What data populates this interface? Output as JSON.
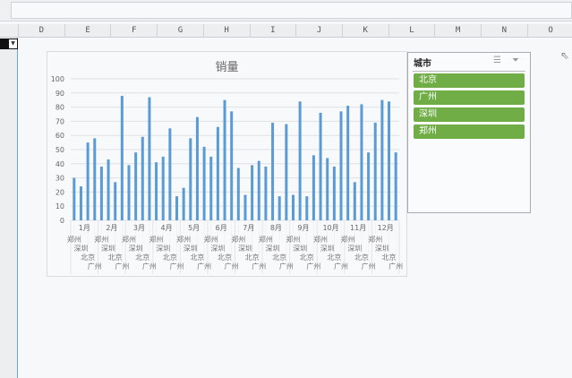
{
  "columns": [
    "D",
    "E",
    "F",
    "G",
    "H",
    "I",
    "J",
    "K",
    "L",
    "M",
    "N",
    "O"
  ],
  "chart_data": {
    "type": "bar",
    "title": "销量",
    "ylim": [
      0,
      100
    ],
    "yticks": [
      0,
      10,
      20,
      30,
      40,
      50,
      60,
      70,
      80,
      90,
      100
    ],
    "grid": true,
    "color": "#5b9bd5",
    "months": [
      "1月",
      "2月",
      "3月",
      "4月",
      "5月",
      "6月",
      "7月",
      "8月",
      "9月",
      "10月",
      "11月",
      "12月"
    ],
    "cities": [
      "郑州",
      "深圳",
      "北京",
      "广州"
    ],
    "values": [
      30,
      24,
      55,
      58,
      38,
      43,
      27,
      88,
      39,
      48,
      59,
      87,
      41,
      45,
      65,
      17,
      23,
      58,
      73,
      52,
      45,
      66,
      85,
      77,
      37,
      18,
      39,
      42,
      38,
      69,
      17,
      68,
      18,
      84,
      17,
      46,
      76,
      44,
      38,
      77,
      81,
      27,
      82,
      48,
      69,
      85,
      84,
      48
    ]
  },
  "slicer": {
    "title": "城市",
    "items": [
      "北京",
      "广州",
      "深圳",
      "郑州"
    ],
    "item_color": "#70ad47"
  }
}
